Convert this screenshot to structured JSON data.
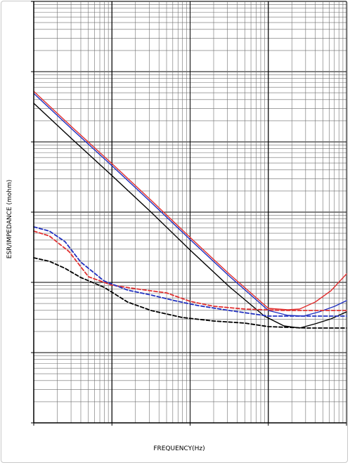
{
  "chart_data": {
    "type": "line",
    "title": "",
    "xlabel": "FREQUENCY(Hz)",
    "ylabel": "ESR/IMPEDANCE (mohm)",
    "x_scale": "log",
    "y_scale": "log",
    "x_decades": 4,
    "y_decades": 6,
    "x_decade_range": [
      0,
      4
    ],
    "y_decade_range": [
      0,
      6
    ],
    "grid": true,
    "legend": "none",
    "note": "",
    "series": [
      {
        "color": "#e03030",
        "dash": false,
        "points": [
          [
            0.0,
            4.72
          ],
          [
            0.5,
            4.2
          ],
          [
            1.0,
            3.69
          ],
          [
            1.5,
            3.17
          ],
          [
            2.0,
            2.64
          ],
          [
            2.5,
            2.12
          ],
          [
            3.0,
            1.63
          ],
          [
            3.25,
            1.61
          ],
          [
            3.4,
            1.62
          ],
          [
            3.6,
            1.72
          ],
          [
            3.8,
            1.88
          ],
          [
            4.0,
            2.12
          ]
        ]
      },
      {
        "color": "#2030c0",
        "dash": false,
        "points": [
          [
            0.0,
            4.69
          ],
          [
            0.5,
            4.17
          ],
          [
            1.0,
            3.66
          ],
          [
            1.5,
            3.14
          ],
          [
            2.0,
            2.61
          ],
          [
            2.5,
            2.09
          ],
          [
            3.0,
            1.6
          ],
          [
            3.25,
            1.53
          ],
          [
            3.45,
            1.52
          ],
          [
            3.65,
            1.58
          ],
          [
            3.85,
            1.66
          ],
          [
            4.0,
            1.74
          ]
        ]
      },
      {
        "color": "#000000",
        "dash": false,
        "points": [
          [
            0.0,
            4.55
          ],
          [
            0.5,
            4.03
          ],
          [
            1.0,
            3.52
          ],
          [
            1.5,
            3.0
          ],
          [
            2.0,
            2.46
          ],
          [
            2.5,
            1.94
          ],
          [
            2.95,
            1.52
          ],
          [
            3.2,
            1.38
          ],
          [
            3.4,
            1.35
          ],
          [
            3.6,
            1.41
          ],
          [
            3.8,
            1.48
          ],
          [
            4.0,
            1.58
          ]
        ]
      },
      {
        "color": "#e03030",
        "dash": true,
        "points": [
          [
            0.0,
            2.73
          ],
          [
            0.2,
            2.66
          ],
          [
            0.45,
            2.44
          ],
          [
            0.7,
            2.08
          ],
          [
            1.0,
            1.96
          ],
          [
            1.3,
            1.91
          ],
          [
            1.7,
            1.85
          ],
          [
            2.0,
            1.73
          ],
          [
            2.3,
            1.66
          ],
          [
            2.7,
            1.62
          ],
          [
            3.2,
            1.6
          ],
          [
            3.6,
            1.6
          ],
          [
            4.0,
            1.6
          ]
        ]
      },
      {
        "color": "#2030c0",
        "dash": true,
        "points": [
          [
            0.0,
            2.79
          ],
          [
            0.2,
            2.73
          ],
          [
            0.4,
            2.58
          ],
          [
            0.6,
            2.29
          ],
          [
            0.9,
            2.02
          ],
          [
            1.2,
            1.89
          ],
          [
            1.5,
            1.82
          ],
          [
            1.8,
            1.74
          ],
          [
            2.1,
            1.67
          ],
          [
            2.5,
            1.6
          ],
          [
            3.0,
            1.52
          ],
          [
            3.5,
            1.52
          ],
          [
            4.0,
            1.52
          ]
        ]
      },
      {
        "color": "#000000",
        "dash": true,
        "points": [
          [
            0.0,
            2.35
          ],
          [
            0.2,
            2.3
          ],
          [
            0.4,
            2.2
          ],
          [
            0.6,
            2.07
          ],
          [
            0.9,
            1.93
          ],
          [
            1.2,
            1.72
          ],
          [
            1.5,
            1.6
          ],
          [
            1.9,
            1.5
          ],
          [
            2.3,
            1.45
          ],
          [
            2.7,
            1.42
          ],
          [
            3.0,
            1.37
          ],
          [
            3.5,
            1.35
          ],
          [
            4.0,
            1.35
          ]
        ]
      }
    ]
  }
}
